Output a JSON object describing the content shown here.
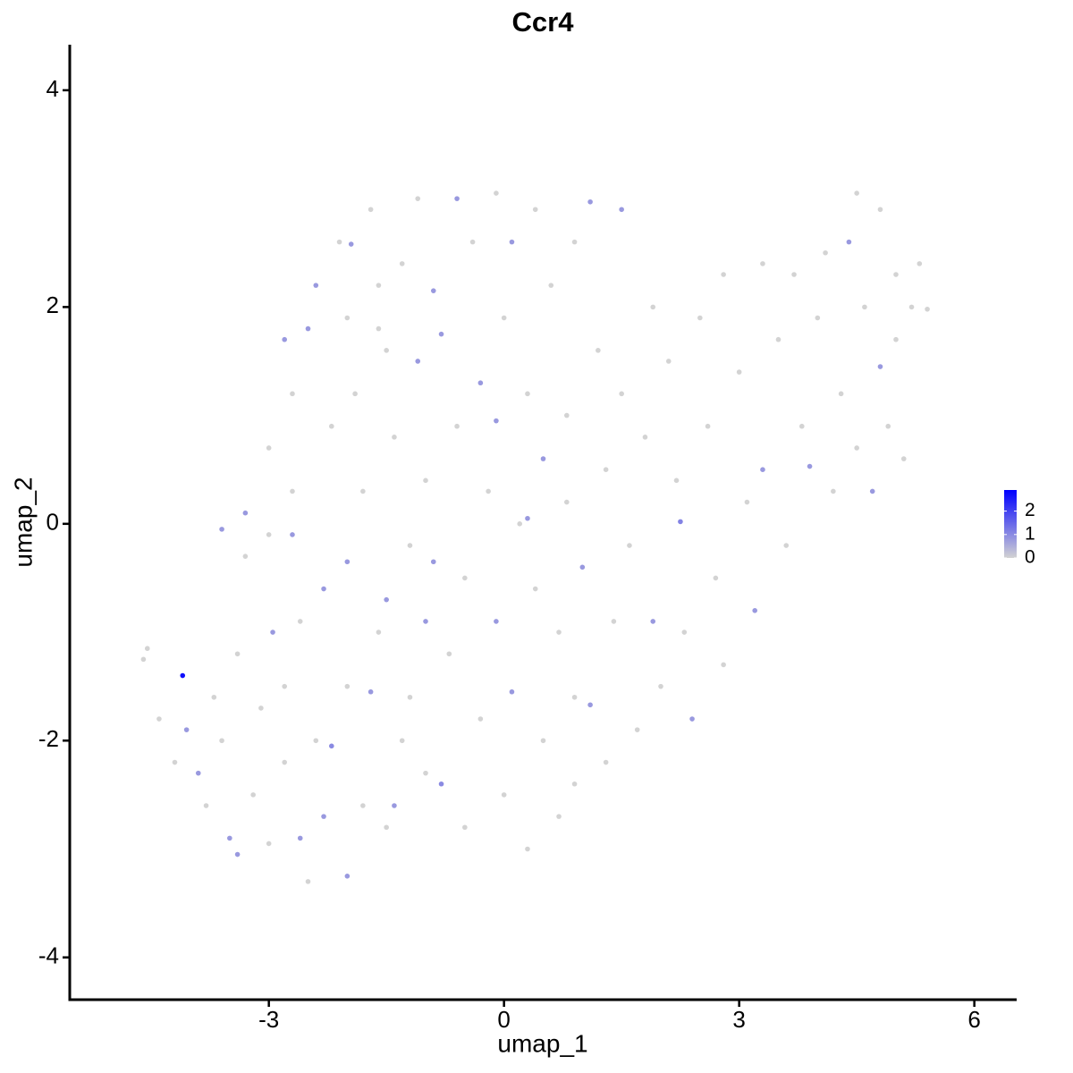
{
  "chart_data": {
    "type": "scatter",
    "title": "Ccr4",
    "x_label": "umap_1",
    "y_label": "umap_2",
    "xlim": [
      -5.54,
      6.54
    ],
    "ylim": [
      -4.39,
      4.42
    ],
    "xticks": [
      -3,
      0,
      3,
      6
    ],
    "yticks": [
      -4,
      -2,
      0,
      2,
      4
    ],
    "grid": false,
    "colorbar": {
      "lim": [
        0,
        2.9
      ],
      "ticks": [
        0,
        1,
        2
      ],
      "low": "lightgrey",
      "high": "blue",
      "position": "right"
    },
    "x": [
      -4.6,
      -4.55,
      -4.4,
      -4.1,
      -4.2,
      -4.05,
      -3.9,
      -3.8,
      -3.7,
      -3.6,
      -3.5,
      -3.4,
      -3.3,
      -3.4,
      -3.2,
      -3.1,
      -3.0,
      -3.0,
      -2.95,
      -3.0,
      -2.8,
      -2.8,
      -2.7,
      -2.7,
      -2.6,
      -2.6,
      -2.5,
      -2.5,
      -2.4,
      -2.4,
      -2.3,
      -2.2,
      -2.2,
      -2.1,
      -2.0,
      -2.0,
      -2.0,
      -1.95,
      -1.9,
      -1.8,
      -1.8,
      -1.7,
      -1.6,
      -1.6,
      -1.5,
      -1.5,
      -1.5,
      -1.4,
      -1.4,
      -1.3,
      -1.2,
      -1.2,
      -1.1,
      -1.1,
      -1.0,
      -1.0,
      -0.9,
      -0.9,
      -0.8,
      -0.8,
      -0.7,
      -0.6,
      -0.6,
      -0.5,
      -0.5,
      -0.4,
      -0.3,
      -0.3,
      -0.2,
      -0.1,
      -0.1,
      0.0,
      0.0,
      0.1,
      0.1,
      0.2,
      0.3,
      0.3,
      0.4,
      0.4,
      0.5,
      0.5,
      0.6,
      0.7,
      0.7,
      0.8,
      0.8,
      0.9,
      0.9,
      1.0,
      1.1,
      1.1,
      1.2,
      1.3,
      1.3,
      1.4,
      1.5,
      1.5,
      1.6,
      1.7,
      1.8,
      1.9,
      1.9,
      2.0,
      2.1,
      2.2,
      2.25,
      2.3,
      2.4,
      2.5,
      2.6,
      2.7,
      2.8,
      2.8,
      3.0,
      3.1,
      3.2,
      3.3,
      3.3,
      3.5,
      3.6,
      3.7,
      3.8,
      3.9,
      4.0,
      4.1,
      4.2,
      4.3,
      4.4,
      4.5,
      4.5,
      4.6,
      4.7,
      4.8,
      4.8,
      4.9,
      5.0,
      5.0,
      5.1,
      5.2,
      5.3,
      5.4,
      -2.0,
      -2.7,
      -1.7,
      -2.3,
      -3.6,
      -3.3,
      -1.0,
      0.3,
      -0.1,
      -1.6,
      -2.8,
      -1.3,
      0.9
    ],
    "y": [
      -1.25,
      -1.15,
      -1.8,
      -1.4,
      -2.2,
      -1.9,
      -2.3,
      -2.6,
      -1.6,
      -2.0,
      -2.9,
      -1.2,
      -0.3,
      -3.05,
      -2.5,
      -1.7,
      -2.95,
      -0.1,
      -1.0,
      0.7,
      -2.2,
      -1.5,
      0.3,
      1.2,
      -2.9,
      -0.9,
      1.8,
      -3.3,
      -2.0,
      2.2,
      -0.6,
      -2.05,
      0.9,
      2.6,
      -3.25,
      -1.5,
      -0.35,
      2.58,
      1.2,
      -2.6,
      0.3,
      2.9,
      -1.0,
      2.2,
      -2.8,
      -0.7,
      1.6,
      0.8,
      -2.6,
      2.4,
      -1.6,
      -0.2,
      3.0,
      1.5,
      -2.3,
      0.4,
      2.15,
      -0.35,
      -2.4,
      1.75,
      -1.2,
      3.0,
      0.9,
      -2.8,
      -0.5,
      2.6,
      1.3,
      -1.8,
      0.3,
      3.05,
      -0.9,
      -2.5,
      1.9,
      -1.55,
      2.6,
      0.0,
      -3.0,
      1.2,
      2.9,
      -0.6,
      -2.0,
      0.6,
      2.2,
      -2.7,
      -1.0,
      1.0,
      0.2,
      2.6,
      -1.6,
      -0.4,
      2.97,
      -1.67,
      1.6,
      0.5,
      -2.2,
      -0.9,
      2.9,
      1.2,
      -0.2,
      -1.9,
      0.8,
      2.0,
      -0.9,
      -1.5,
      1.5,
      0.4,
      0.02,
      -1.0,
      -1.8,
      1.9,
      0.9,
      -0.5,
      2.3,
      -1.3,
      1.4,
      0.2,
      -0.8,
      2.4,
      0.5,
      1.7,
      -0.2,
      2.3,
      0.9,
      0.53,
      1.9,
      2.5,
      0.3,
      1.2,
      2.6,
      3.05,
      0.7,
      2.0,
      0.3,
      2.9,
      1.45,
      0.9,
      2.3,
      1.7,
      0.6,
      2.0,
      2.4,
      1.98,
      1.9,
      -0.1,
      -1.55,
      -2.7,
      -0.05,
      0.1,
      -0.9,
      0.05,
      0.95,
      1.8,
      1.7,
      -2.0,
      -2.4
    ],
    "values": [
      0,
      0,
      0,
      2.7,
      0,
      0.8,
      0.8,
      0,
      0,
      0,
      0.8,
      0,
      0,
      0.8,
      0,
      0,
      0,
      0,
      0.8,
      0,
      0,
      0,
      0,
      0,
      0.8,
      0,
      0.8,
      0,
      0,
      0.8,
      0.8,
      1.0,
      0,
      0,
      0.8,
      0,
      0.8,
      0.8,
      0,
      0,
      0,
      0,
      0,
      0,
      0,
      0.8,
      0,
      0,
      0.8,
      0,
      0,
      0,
      0,
      0.8,
      0,
      0,
      0.8,
      0.8,
      1.0,
      0.8,
      0,
      0.8,
      0,
      0,
      0,
      0,
      0.8,
      0,
      0,
      0,
      0.8,
      0,
      0,
      0.8,
      0.8,
      0,
      0,
      0,
      0,
      0,
      0,
      0.8,
      0,
      0,
      0,
      0,
      0,
      0,
      0,
      0.8,
      0.8,
      0.8,
      0,
      0,
      0,
      0,
      0.8,
      0,
      0,
      0,
      0,
      0,
      0.8,
      0,
      0,
      0,
      1.1,
      0,
      0.8,
      0,
      0,
      0,
      0,
      0,
      0,
      0,
      0.8,
      0,
      0.8,
      0,
      0,
      0,
      0,
      0.8,
      0,
      0,
      0,
      0,
      0.8,
      0,
      0,
      0,
      0.8,
      0,
      0.8,
      0,
      0,
      0,
      0,
      0,
      0,
      0,
      0,
      0.8,
      0.8,
      0.8,
      0.8,
      0.8,
      0.8,
      0.8,
      0.8,
      0,
      0.8,
      0,
      0
    ]
  }
}
